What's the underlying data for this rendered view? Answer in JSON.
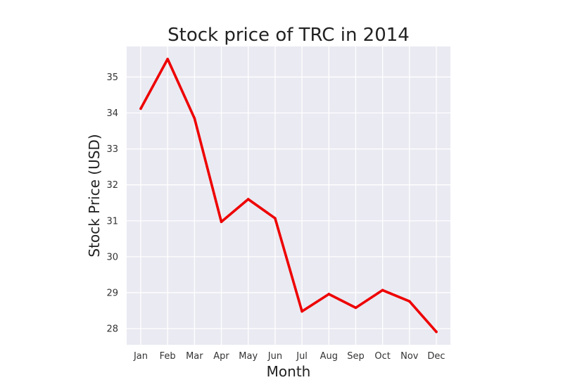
{
  "chart_data": {
    "type": "line",
    "title": "Stock price of TRC in 2014",
    "xlabel": "Month",
    "ylabel": "Stock Price (USD)",
    "categories": [
      "Jan",
      "Feb",
      "Mar",
      "Apr",
      "May",
      "Jun",
      "Jul",
      "Aug",
      "Sep",
      "Oct",
      "Nov",
      "Dec"
    ],
    "series": [
      {
        "values": [
          34.12,
          35.5,
          33.85,
          30.97,
          31.6,
          31.07,
          28.48,
          28.96,
          28.58,
          29.07,
          28.76,
          27.91
        ]
      }
    ],
    "y_ticks": [
      "28",
      "29",
      "30",
      "31",
      "32",
      "33",
      "34",
      "35"
    ],
    "ylim": [
      27.55,
      35.85
    ],
    "grid": true,
    "legend": "none",
    "colors": {
      "line": "#ee0000",
      "plot_background": "#eaeaf2",
      "grid": "#ffffff"
    }
  }
}
